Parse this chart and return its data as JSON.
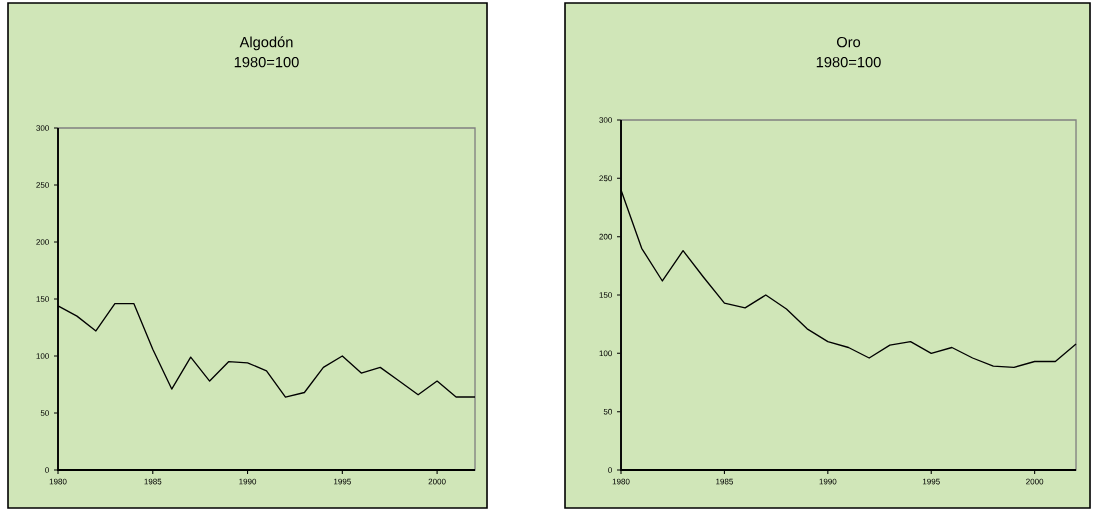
{
  "chart_data": [
    {
      "type": "line",
      "title": "Algodón",
      "subtitle": "1980=100",
      "color": "#000000",
      "x": [
        1980,
        1981,
        1982,
        1983,
        1984,
        1985,
        1986,
        1987,
        1988,
        1989,
        1990,
        1991,
        1992,
        1993,
        1994,
        1995,
        1996,
        1997,
        1998,
        1999,
        2000,
        2001,
        2002
      ],
      "values": [
        144,
        135,
        122,
        146,
        146,
        106,
        71,
        99,
        78,
        95,
        94,
        87,
        64,
        68,
        90,
        100,
        85,
        90,
        78,
        66,
        78,
        64,
        64
      ],
      "xlim": [
        1980,
        2002
      ],
      "ylim": [
        0,
        300
      ],
      "xticks": [
        1980,
        1985,
        1990,
        1995,
        2000
      ],
      "yticks": [
        0,
        50,
        100,
        150,
        200,
        250,
        300
      ]
    },
    {
      "type": "line",
      "title": "Oro",
      "subtitle": "1980=100",
      "color": "#000000",
      "x": [
        1980,
        1981,
        1982,
        1983,
        1984,
        1985,
        1986,
        1987,
        1988,
        1989,
        1990,
        1991,
        1992,
        1993,
        1994,
        1995,
        1996,
        1997,
        1998,
        1999,
        2000,
        2001,
        2002
      ],
      "values": [
        240,
        190,
        162,
        188,
        165,
        143,
        139,
        150,
        138,
        121,
        110,
        105,
        96,
        107,
        110,
        100,
        105,
        96,
        89,
        88,
        93,
        93,
        108
      ],
      "xlim": [
        1980,
        2002
      ],
      "ylim": [
        0,
        300
      ],
      "xticks": [
        1980,
        1985,
        1990,
        1995,
        2000
      ],
      "yticks": [
        0,
        50,
        100,
        150,
        200,
        250,
        300
      ]
    }
  ]
}
